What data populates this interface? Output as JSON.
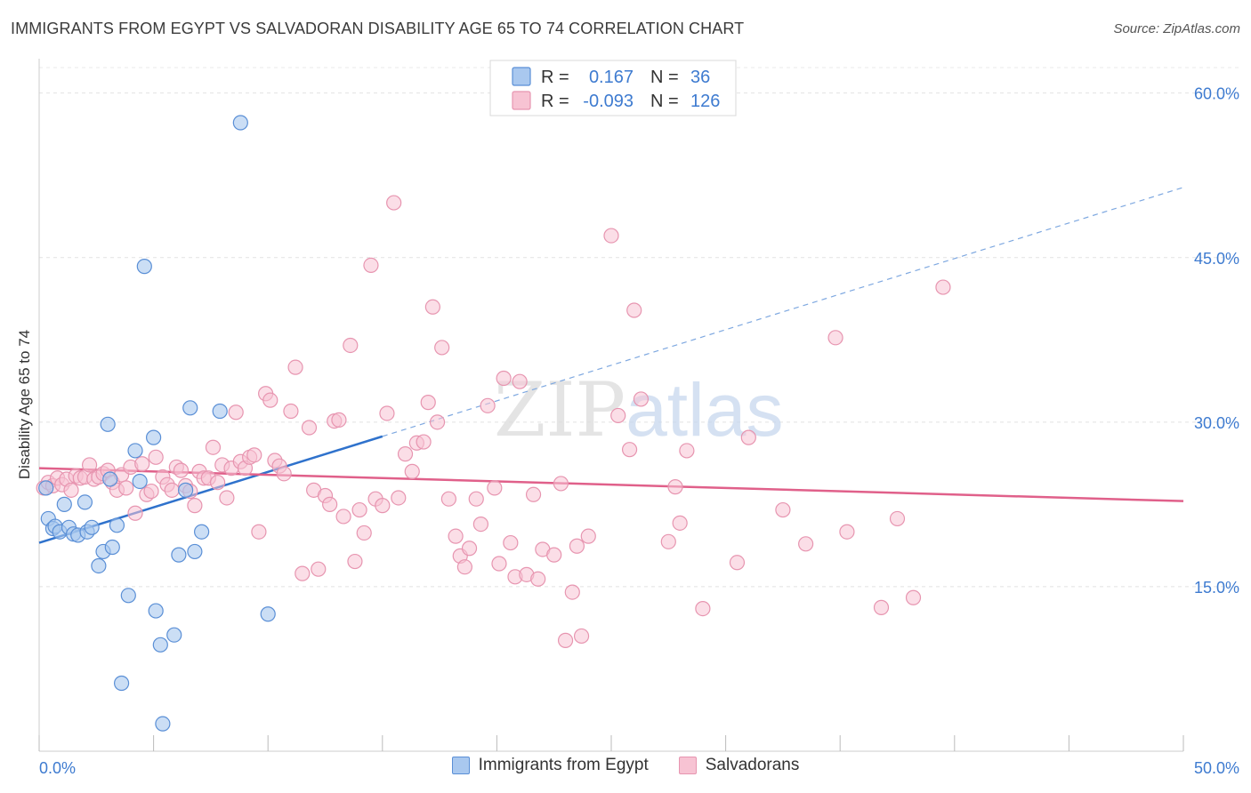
{
  "title": "IMMIGRANTS FROM EGYPT VS SALVADORAN DISABILITY AGE 65 TO 74 CORRELATION CHART",
  "source": "Source: ZipAtlas.com",
  "watermark": "ZIPatlas",
  "colors": {
    "blue_fill": "#a9c8ef",
    "blue_stroke": "#5a8fd6",
    "blue_line": "#2f72cc",
    "pink_fill": "#f7c3d3",
    "pink_stroke": "#e795b0",
    "pink_line": "#e0608a",
    "axis_text": "#3e7bd0"
  },
  "legend": {
    "r_label": "R =",
    "n_label": "N =",
    "rows": [
      {
        "series": "Immigrants from Egypt",
        "r": "0.167",
        "n": "36"
      },
      {
        "series": "Salvadorans",
        "r": "-0.093",
        "n": "126"
      }
    ]
  },
  "chart_data": {
    "type": "scatter",
    "title": "IMMIGRANTS FROM EGYPT VS SALVADORAN DISABILITY AGE 65 TO 74 CORRELATION CHART",
    "xlabel": "",
    "ylabel": "Disability Age 65 to 74",
    "xlim": [
      0,
      50
    ],
    "ylim": [
      0,
      62
    ],
    "x_tick_labels": [
      "0.0%",
      "50.0%"
    ],
    "y_ticks": [
      15,
      30,
      45,
      60
    ],
    "y_tick_labels": [
      "15.0%",
      "30.0%",
      "45.0%",
      "60.0%"
    ],
    "grid": true,
    "legend_position": "top-center",
    "series": [
      {
        "name": "Immigrants from Egypt",
        "color": "#a9c8ef",
        "trend": {
          "x": [
            0,
            15
          ],
          "y": [
            19.0,
            28.7
          ],
          "dashed_extension_to": [
            50,
            51.4
          ]
        },
        "points": [
          [
            0.3,
            24.0
          ],
          [
            0.4,
            21.2
          ],
          [
            0.6,
            20.3
          ],
          [
            0.7,
            20.5
          ],
          [
            0.9,
            20.0
          ],
          [
            1.1,
            22.5
          ],
          [
            1.3,
            20.4
          ],
          [
            1.5,
            19.8
          ],
          [
            1.7,
            19.7
          ],
          [
            2.0,
            22.7
          ],
          [
            2.1,
            20.0
          ],
          [
            2.3,
            20.4
          ],
          [
            2.6,
            16.9
          ],
          [
            2.8,
            18.2
          ],
          [
            3.1,
            24.8
          ],
          [
            3.2,
            18.6
          ],
          [
            3.4,
            20.6
          ],
          [
            3.6,
            6.2
          ],
          [
            3.9,
            14.2
          ],
          [
            4.2,
            27.4
          ],
          [
            4.4,
            24.6
          ],
          [
            4.6,
            44.2
          ],
          [
            5.0,
            28.6
          ],
          [
            5.1,
            12.8
          ],
          [
            5.3,
            9.7
          ],
          [
            5.9,
            10.6
          ],
          [
            6.1,
            17.9
          ],
          [
            6.4,
            23.8
          ],
          [
            6.6,
            31.3
          ],
          [
            6.8,
            18.2
          ],
          [
            7.1,
            20.0
          ],
          [
            7.9,
            31.0
          ],
          [
            3.0,
            29.8
          ],
          [
            5.4,
            2.5
          ],
          [
            8.8,
            57.3
          ],
          [
            10.0,
            12.5
          ]
        ]
      },
      {
        "name": "Salvadorans",
        "color": "#f7c3d3",
        "trend": {
          "x": [
            0,
            50
          ],
          "y": [
            25.8,
            22.8
          ]
        },
        "points": [
          [
            0.2,
            24.0
          ],
          [
            0.4,
            24.5
          ],
          [
            0.6,
            24.2
          ],
          [
            0.8,
            24.9
          ],
          [
            1.0,
            24.3
          ],
          [
            1.2,
            24.8
          ],
          [
            1.4,
            23.8
          ],
          [
            1.6,
            25.1
          ],
          [
            1.8,
            24.9
          ],
          [
            2.0,
            25.0
          ],
          [
            2.2,
            26.1
          ],
          [
            2.4,
            24.8
          ],
          [
            2.6,
            25.0
          ],
          [
            2.8,
            25.3
          ],
          [
            3.0,
            25.6
          ],
          [
            3.2,
            24.5
          ],
          [
            3.4,
            23.8
          ],
          [
            3.6,
            25.2
          ],
          [
            3.8,
            24.0
          ],
          [
            4.0,
            25.9
          ],
          [
            4.2,
            21.7
          ],
          [
            4.5,
            26.2
          ],
          [
            4.7,
            23.4
          ],
          [
            4.9,
            23.7
          ],
          [
            5.1,
            26.8
          ],
          [
            5.4,
            25.0
          ],
          [
            5.6,
            24.3
          ],
          [
            5.8,
            23.8
          ],
          [
            6.0,
            25.9
          ],
          [
            6.2,
            25.6
          ],
          [
            6.4,
            24.2
          ],
          [
            6.6,
            23.7
          ],
          [
            6.8,
            22.4
          ],
          [
            7.0,
            25.5
          ],
          [
            7.2,
            24.9
          ],
          [
            7.4,
            24.9
          ],
          [
            7.6,
            27.7
          ],
          [
            7.8,
            24.5
          ],
          [
            8.0,
            26.1
          ],
          [
            8.2,
            23.1
          ],
          [
            8.4,
            25.8
          ],
          [
            8.6,
            30.9
          ],
          [
            8.8,
            26.4
          ],
          [
            9.0,
            25.8
          ],
          [
            9.2,
            26.8
          ],
          [
            9.4,
            27.0
          ],
          [
            9.6,
            20.0
          ],
          [
            9.9,
            32.6
          ],
          [
            10.1,
            32.0
          ],
          [
            10.3,
            26.5
          ],
          [
            10.5,
            26.0
          ],
          [
            10.7,
            25.3
          ],
          [
            11.0,
            31.0
          ],
          [
            11.2,
            35.0
          ],
          [
            11.5,
            16.2
          ],
          [
            11.8,
            29.5
          ],
          [
            12.0,
            23.8
          ],
          [
            12.2,
            16.6
          ],
          [
            12.5,
            23.3
          ],
          [
            12.7,
            22.5
          ],
          [
            12.9,
            30.1
          ],
          [
            13.1,
            30.2
          ],
          [
            13.3,
            21.4
          ],
          [
            13.6,
            37.0
          ],
          [
            13.8,
            17.3
          ],
          [
            14.0,
            22.0
          ],
          [
            14.2,
            19.9
          ],
          [
            14.5,
            44.3
          ],
          [
            14.7,
            23.0
          ],
          [
            15.0,
            22.4
          ],
          [
            15.2,
            30.8
          ],
          [
            15.5,
            50.0
          ],
          [
            15.7,
            23.1
          ],
          [
            16.0,
            27.1
          ],
          [
            16.3,
            25.5
          ],
          [
            16.5,
            28.1
          ],
          [
            16.8,
            28.2
          ],
          [
            17.0,
            31.8
          ],
          [
            17.2,
            40.5
          ],
          [
            17.4,
            30.0
          ],
          [
            17.6,
            36.8
          ],
          [
            17.9,
            23.0
          ],
          [
            18.2,
            19.6
          ],
          [
            18.4,
            17.8
          ],
          [
            18.6,
            16.8
          ],
          [
            18.8,
            18.5
          ],
          [
            19.1,
            23.0
          ],
          [
            19.3,
            20.7
          ],
          [
            19.6,
            31.5
          ],
          [
            19.9,
            24.0
          ],
          [
            20.1,
            17.1
          ],
          [
            20.3,
            34.0
          ],
          [
            20.6,
            19.0
          ],
          [
            20.8,
            15.9
          ],
          [
            21.0,
            33.7
          ],
          [
            21.3,
            16.1
          ],
          [
            21.6,
            23.4
          ],
          [
            21.8,
            15.7
          ],
          [
            22.0,
            18.4
          ],
          [
            22.5,
            17.9
          ],
          [
            22.8,
            24.4
          ],
          [
            23.0,
            10.1
          ],
          [
            23.3,
            14.5
          ],
          [
            23.5,
            18.7
          ],
          [
            23.7,
            10.5
          ],
          [
            24.0,
            19.6
          ],
          [
            25.0,
            47.0
          ],
          [
            25.3,
            30.6
          ],
          [
            25.8,
            27.5
          ],
          [
            26.0,
            40.2
          ],
          [
            26.3,
            32.1
          ],
          [
            27.5,
            19.1
          ],
          [
            27.8,
            24.1
          ],
          [
            28.0,
            20.8
          ],
          [
            28.3,
            27.4
          ],
          [
            29.0,
            13.0
          ],
          [
            30.5,
            17.2
          ],
          [
            31.0,
            28.6
          ],
          [
            32.5,
            22.0
          ],
          [
            33.5,
            18.9
          ],
          [
            34.8,
            37.7
          ],
          [
            35.3,
            20.0
          ],
          [
            36.8,
            13.1
          ],
          [
            37.5,
            21.2
          ],
          [
            38.2,
            14.0
          ],
          [
            39.5,
            42.3
          ]
        ]
      }
    ]
  },
  "bottom_legend": [
    "Immigrants from Egypt",
    "Salvadorans"
  ]
}
